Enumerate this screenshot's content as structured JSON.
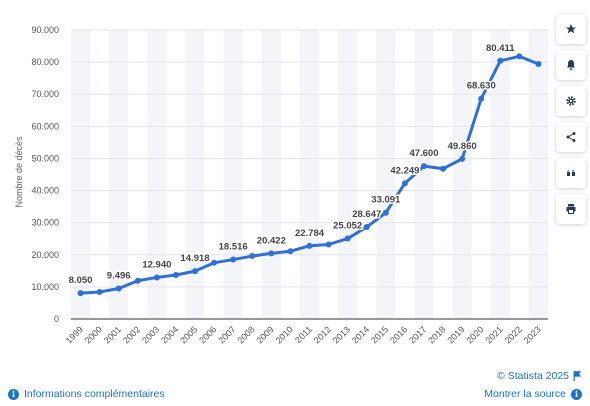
{
  "chart_data": {
    "type": "line",
    "ylabel": "Nombre de décès",
    "ylim": [
      0,
      90000
    ],
    "yticks": [
      "0",
      "10.000",
      "20.000",
      "30.000",
      "40.000",
      "50.000",
      "60.000",
      "70.000",
      "80.000",
      "90.000"
    ],
    "ytick_values": [
      0,
      10000,
      20000,
      30000,
      40000,
      50000,
      60000,
      70000,
      80000,
      90000
    ],
    "categories": [
      "1999",
      "2000",
      "2001",
      "2002",
      "2003",
      "2004",
      "2005",
      "2006",
      "2007",
      "2008",
      "2009",
      "2010",
      "2011",
      "2012",
      "2013",
      "2014",
      "2015",
      "2016",
      "2017",
      "2018",
      "2019",
      "2020",
      "2021",
      "2022",
      "2023"
    ],
    "values": [
      8050,
      8400,
      9496,
      11900,
      12940,
      13700,
      14918,
      17500,
      18516,
      19600,
      20422,
      21100,
      22784,
      23200,
      25052,
      28647,
      33091,
      42249,
      47600,
      46800,
      49860,
      68630,
      80411,
      81800,
      79400
    ],
    "data_labels": [
      "8.050",
      "",
      "9.496",
      "",
      "12.940",
      "",
      "14.918",
      "",
      "18.516",
      "",
      "20.422",
      "",
      "22.784",
      "",
      "25.052",
      "28.647",
      "33.091",
      "42.249",
      "47.600",
      "",
      "49.860",
      "68.630",
      "80.411",
      "",
      ""
    ],
    "grid": true,
    "line_color": "#2f6fd6"
  },
  "toolbar": {
    "buttons": [
      {
        "name": "favorite-button",
        "icon": "star-icon"
      },
      {
        "name": "alert-button",
        "icon": "bell-icon"
      },
      {
        "name": "settings-button",
        "icon": "gear-icon"
      },
      {
        "name": "share-button",
        "icon": "share-icon"
      },
      {
        "name": "cite-button",
        "icon": "quote-icon"
      },
      {
        "name": "print-button",
        "icon": "printer-icon"
      }
    ]
  },
  "footer": {
    "info_link": "Informations complémentaires",
    "copyright": "© Statista 2025",
    "source_link": "Montrer la source"
  }
}
